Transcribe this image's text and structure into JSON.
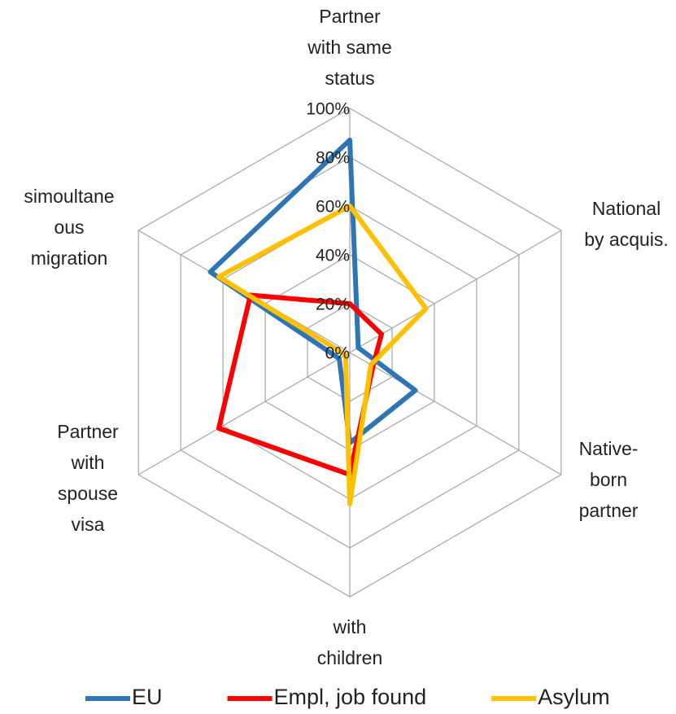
{
  "chart_data": {
    "type": "radar",
    "categories": [
      [
        "Partner",
        "with same",
        "status"
      ],
      [
        "National",
        "by acquis."
      ],
      [
        "Native-",
        "born",
        "partner"
      ],
      [
        "with",
        "children"
      ],
      [
        "Partner",
        "with",
        "spouse",
        "visa"
      ],
      [
        "simoultane",
        "ous",
        "migration"
      ]
    ],
    "series": [
      {
        "name": "EU",
        "color": "#2e75b6",
        "values": [
          87,
          4,
          31,
          37,
          5,
          66
        ]
      },
      {
        "name": "Empl, job found",
        "color": "#ff0000",
        "values": [
          20,
          15,
          11,
          50,
          62,
          47
        ]
      },
      {
        "name": "Asylum",
        "color": "#ffc000",
        "values": [
          60,
          36,
          10,
          62,
          2,
          62
        ]
      }
    ],
    "ylim": [
      0,
      100
    ],
    "yticks": [
      {
        "value": 0,
        "label": "0%"
      },
      {
        "value": 20,
        "label": "20%"
      },
      {
        "value": 40,
        "label": "40%"
      },
      {
        "value": 60,
        "label": "60%"
      },
      {
        "value": 80,
        "label": "80%"
      },
      {
        "value": 100,
        "label": "100%"
      }
    ],
    "grid": true
  }
}
